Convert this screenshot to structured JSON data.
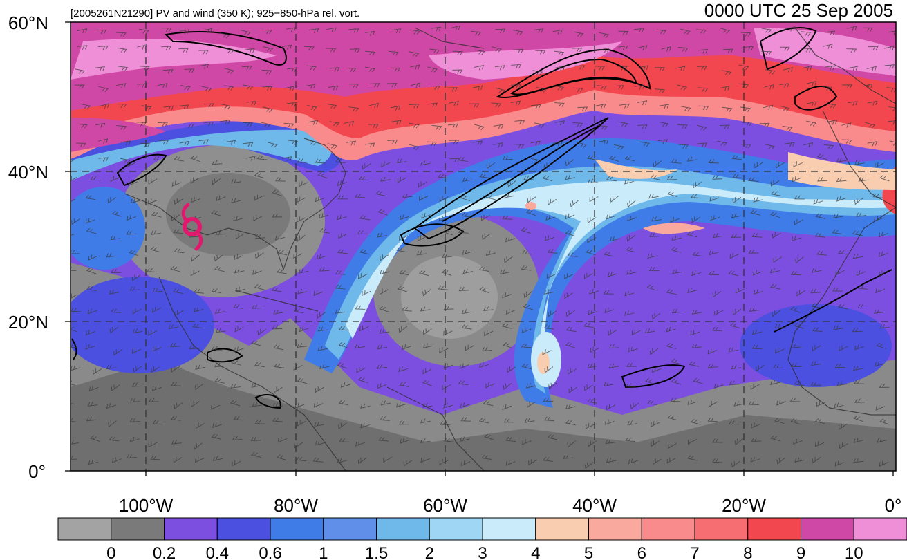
{
  "map": {
    "title_left": "[2005261N21290] PV and wind (350 K); 925−850-hPa rel. vort.",
    "title_right": "0000 UTC 25 Sep 2005",
    "lat_labels": [
      "60°N",
      "40°N",
      "20°N",
      "0°"
    ],
    "lon_labels": [
      "100°W",
      "80°W",
      "60°W",
      "40°W",
      "20°W",
      "0°"
    ],
    "extent": {
      "lon_min": -110,
      "lon_max": 0,
      "lat_min": 0,
      "lat_max": 60
    },
    "hurricane_symbol_color": "#e0196e",
    "gridline_style": "dashed"
  },
  "colorbar": {
    "bins": [
      "#a3a3a3",
      "#7a7a7a",
      "#7d4fe0",
      "#4b50e0",
      "#3f7ce8",
      "#5f8fe8",
      "#6fb8ea",
      "#9fd6f4",
      "#c9ebfa",
      "#f8cdb0",
      "#f9a99e",
      "#f98b8c",
      "#f66e72",
      "#f2474e",
      "#d048a6",
      "#ef8fd8"
    ],
    "tick_labels": [
      "0",
      "0.2",
      "0.4",
      "0.6",
      "1",
      "1.5",
      "2",
      "3",
      "4",
      "5",
      "6",
      "7",
      "8",
      "9",
      "10"
    ]
  }
}
